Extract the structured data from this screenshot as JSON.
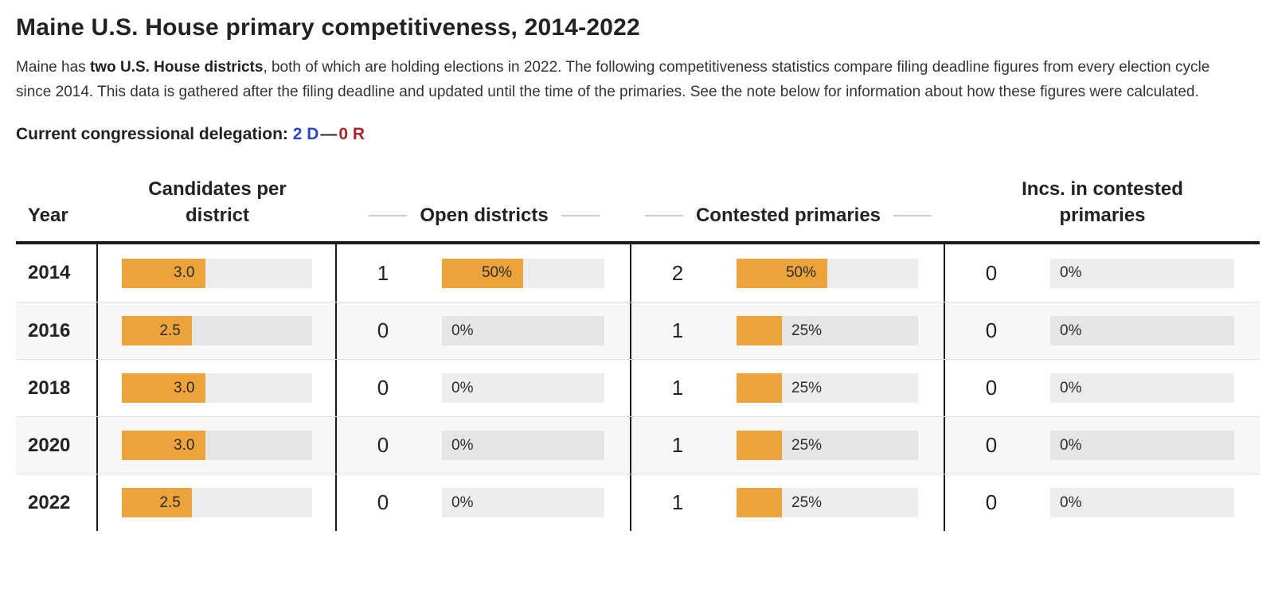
{
  "page": {
    "title": "Maine U.S. House primary competitiveness, 2014-2022",
    "intro": {
      "pre_bold": "Maine has ",
      "bold": "two U.S. House districts",
      "post_bold": ", both of which are holding elections in 2022. The following competitiveness statistics compare filing deadline figures from every election cycle since 2014. This data is gathered after the filing deadline and updated until the time of the primaries. See the note below for information about how these figures were calculated."
    },
    "delegation": {
      "label": "Current congressional delegation:",
      "dem": "2 D",
      "separator": "—",
      "rep": "0 R",
      "dem_color": "#2b46c6",
      "rep_color": "#b0202a"
    }
  },
  "chart_data": {
    "type": "table",
    "title": "Maine U.S. House primary competitiveness, 2014-2022",
    "columns": [
      "Year",
      "Candidates per district",
      "Open districts",
      "Contested primaries",
      "Incs. in contested primaries"
    ],
    "bar_color": "#eda33c",
    "track_color": "#ececec",
    "candidates_bar_axis_max": 6.8,
    "rows": [
      {
        "year": "2014",
        "candidates_per_district": 3.0,
        "open_districts": 1,
        "open_districts_pct": 50,
        "contested_primaries": 2,
        "contested_primaries_pct": 50,
        "incs_in_contested": 0,
        "incs_in_contested_pct": 0
      },
      {
        "year": "2016",
        "candidates_per_district": 2.5,
        "open_districts": 0,
        "open_districts_pct": 0,
        "contested_primaries": 1,
        "contested_primaries_pct": 25,
        "incs_in_contested": 0,
        "incs_in_contested_pct": 0
      },
      {
        "year": "2018",
        "candidates_per_district": 3.0,
        "open_districts": 0,
        "open_districts_pct": 0,
        "contested_primaries": 1,
        "contested_primaries_pct": 25,
        "incs_in_contested": 0,
        "incs_in_contested_pct": 0
      },
      {
        "year": "2020",
        "candidates_per_district": 3.0,
        "open_districts": 0,
        "open_districts_pct": 0,
        "contested_primaries": 1,
        "contested_primaries_pct": 25,
        "incs_in_contested": 0,
        "incs_in_contested_pct": 0
      },
      {
        "year": "2022",
        "candidates_per_district": 2.5,
        "open_districts": 0,
        "open_districts_pct": 0,
        "contested_primaries": 1,
        "contested_primaries_pct": 25,
        "incs_in_contested": 0,
        "incs_in_contested_pct": 0
      }
    ]
  }
}
